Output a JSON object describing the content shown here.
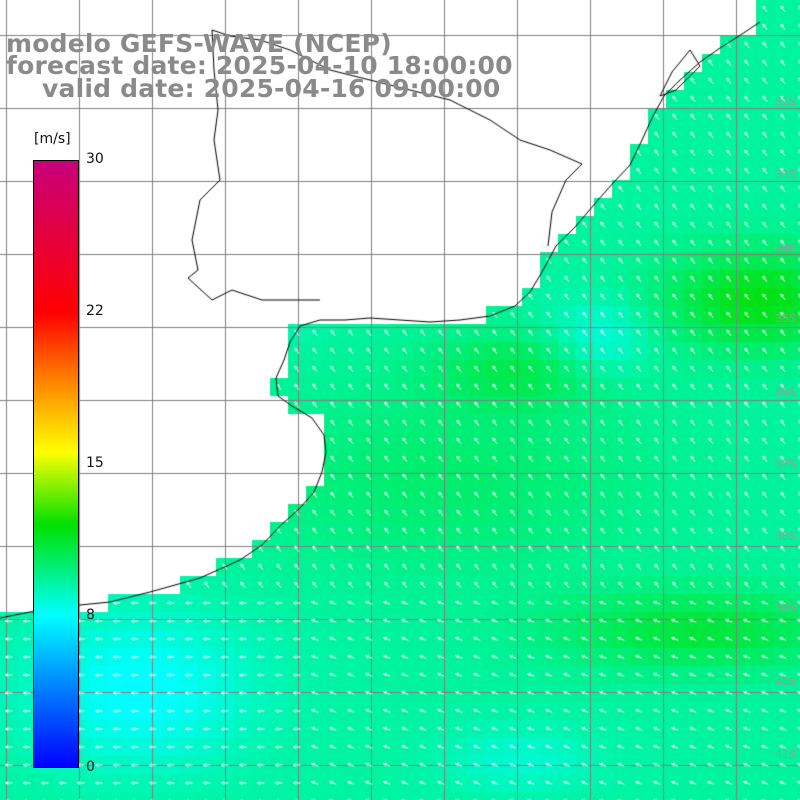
{
  "title": {
    "line1": "modelo GEFS-WAVE (NCEP)",
    "line2": "forecast date: 2025-04-10 18:00:00",
    "line3": "valid date: 2025-04-16 09:00:00"
  },
  "colorbar": {
    "unit": "[m/s]",
    "min": 0,
    "max": 30,
    "ticks": [
      "30",
      "22",
      "15",
      "8",
      "0"
    ],
    "colors": [
      "#0000ff",
      "#0080ff",
      "#00ffff",
      "#00e000",
      "#ffff00",
      "#ff8000",
      "#ff0000",
      "#c8007a"
    ]
  },
  "latitude_labels": [
    "32S",
    "33S",
    "34S",
    "35S",
    "36S",
    "37S",
    "38S",
    "39S",
    "40S",
    "41S"
  ],
  "map": {
    "variable": "wind speed",
    "units": "m/s",
    "land_color": "#ffffff",
    "grid_color": "#808080",
    "coast_color": "#000000",
    "arrow_color": "#ffffff"
  }
}
